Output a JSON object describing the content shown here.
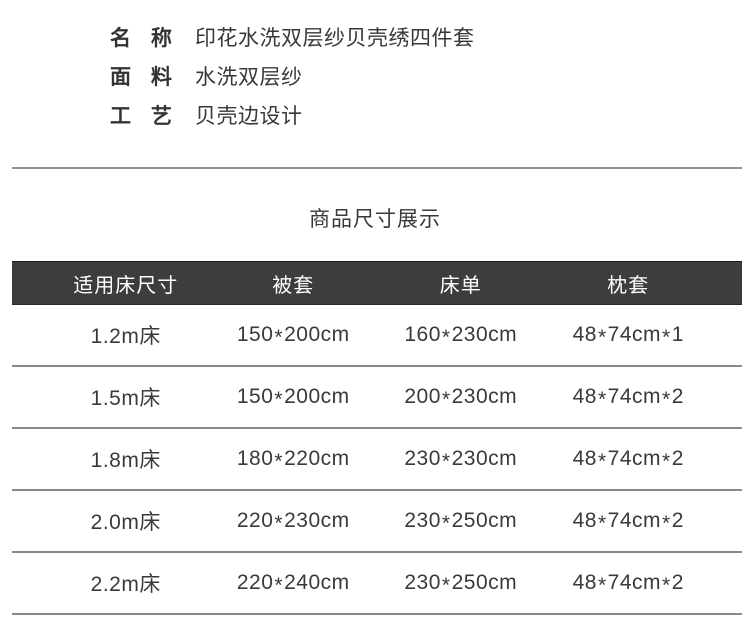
{
  "product_info": {
    "rows": [
      {
        "label": "名 称",
        "value": "印花水洗双层纱贝壳绣四件套"
      },
      {
        "label": "面 料",
        "value": "水洗双层纱"
      },
      {
        "label": "工 艺",
        "value": "贝壳边设计"
      }
    ]
  },
  "size_section": {
    "title": "商品尺寸展示"
  },
  "size_table": {
    "headers": [
      "适用床尺寸",
      "被套",
      "床单",
      "枕套"
    ],
    "rows": [
      [
        "1.2m床",
        "150*200cm",
        "160*230cm",
        "48*74cm*1"
      ],
      [
        "1.5m床",
        "150*200cm",
        "200*230cm",
        "48*74cm*2"
      ],
      [
        "1.8m床",
        "180*220cm",
        "230*230cm",
        "48*74cm*2"
      ],
      [
        "2.0m床",
        "220*230cm",
        "230*250cm",
        "48*74cm*2"
      ],
      [
        "2.2m床",
        "220*240cm",
        "230*250cm",
        "48*74cm*2"
      ]
    ]
  },
  "colors": {
    "table_header_bg": "#3d3d3d",
    "table_header_text": "#ffffff",
    "body_text": "#3a3a3a",
    "divider": "#919191",
    "row_rule": "#898989",
    "background": "#ffffff"
  }
}
